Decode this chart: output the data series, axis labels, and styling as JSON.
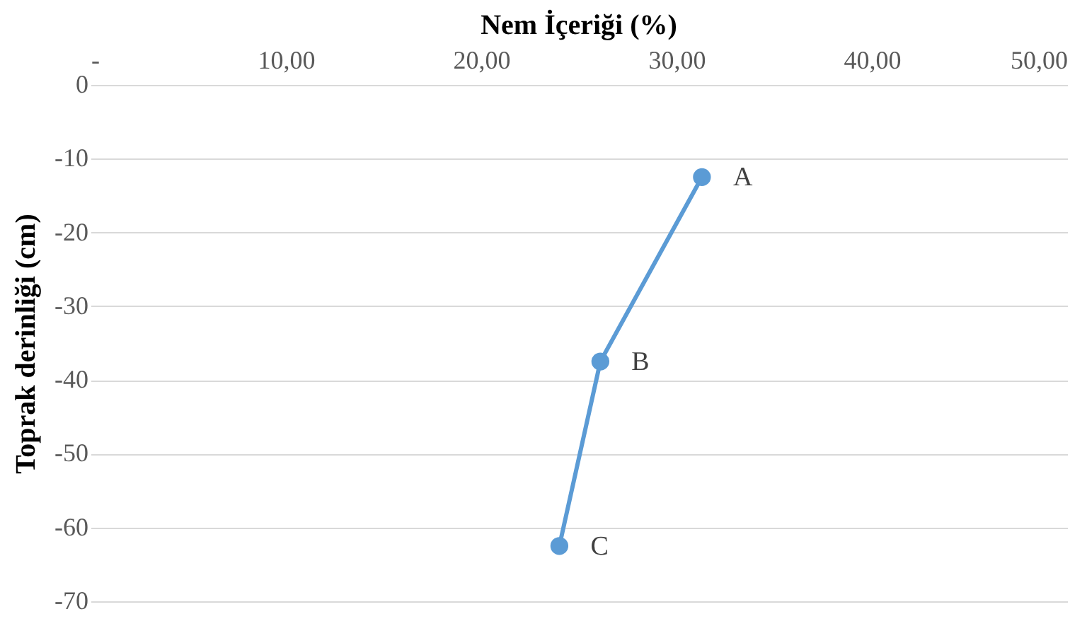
{
  "chart_data": {
    "type": "line",
    "title": "Nem İçeriği (%)",
    "ylabel": "Toprak derinliği (cm)",
    "x": [
      31.3,
      26.1,
      24.0
    ],
    "series": [
      {
        "color": "#5b9bd5",
        "values": [
          -12.5,
          -37.5,
          -62.5
        ]
      }
    ],
    "xlim": [
      0,
      50
    ],
    "xticks": [
      {
        "value": 0,
        "label": "-"
      },
      {
        "value": 10,
        "label": "10,00"
      },
      {
        "value": 20,
        "label": "20,00"
      },
      {
        "value": 30,
        "label": "30,00"
      },
      {
        "value": 40,
        "label": "40,00"
      },
      {
        "value": 50,
        "label": "50,00"
      }
    ],
    "ylim": [
      -70,
      0
    ],
    "yticks": [
      -70,
      -60,
      -50,
      -40,
      -30,
      -20,
      -10,
      0
    ],
    "grid": "y",
    "marker": "circle",
    "line_style": "solid",
    "annotations": [
      {
        "text": "A",
        "x": 31.3,
        "y": -12.5
      },
      {
        "text": "B",
        "x": 26.1,
        "y": -37.5
      },
      {
        "text": "C",
        "x": 24.0,
        "y": -62.5
      }
    ]
  }
}
